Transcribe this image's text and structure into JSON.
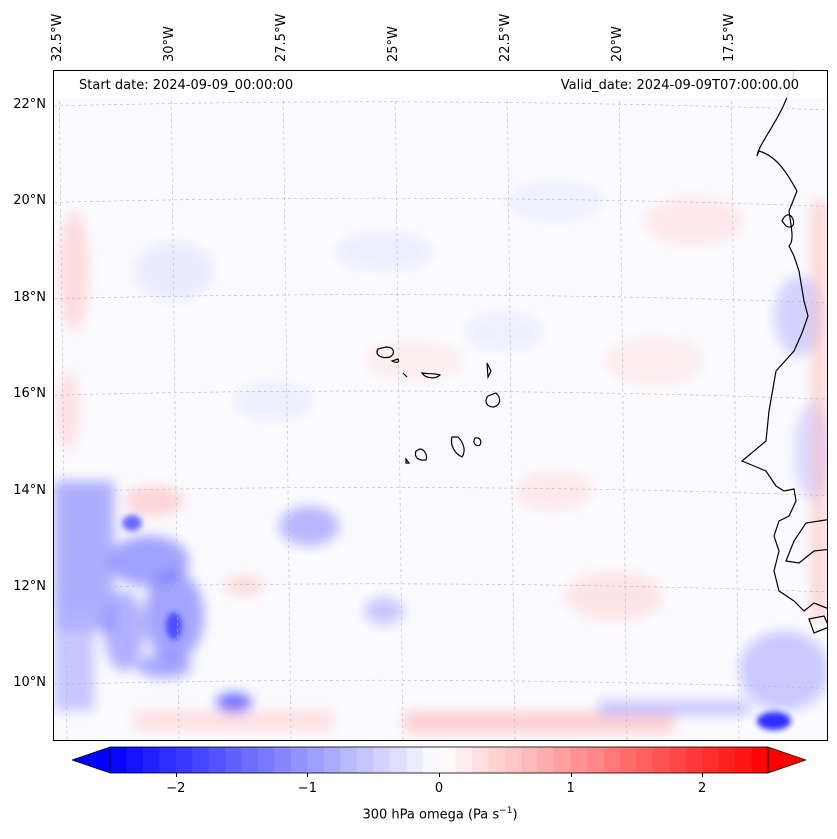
{
  "map": {
    "lon_ticks": [
      {
        "label": "32.5°W",
        "value": -32.5
      },
      {
        "label": "30°W",
        "value": -30
      },
      {
        "label": "27.5°W",
        "value": -27.5
      },
      {
        "label": "25°W",
        "value": -25
      },
      {
        "label": "22.5°W",
        "value": -22.5
      },
      {
        "label": "20°W",
        "value": -20
      },
      {
        "label": "17.5°W",
        "value": -17.5
      }
    ],
    "lat_ticks": [
      {
        "label": "22°N",
        "value": 22
      },
      {
        "label": "20°N",
        "value": 20
      },
      {
        "label": "18°N",
        "value": 18
      },
      {
        "label": "16°N",
        "value": 16
      },
      {
        "label": "14°N",
        "value": 14
      },
      {
        "label": "12°N",
        "value": 12
      },
      {
        "label": "10°N",
        "value": 10
      }
    ],
    "start_date": "Start date: 2024-09-09_00:00:00",
    "valid_date": "Valid_date: 2024-09-09T07:00:00.00"
  },
  "colorbar": {
    "ticks": [
      {
        "label": "−2",
        "value": -2
      },
      {
        "label": "−1",
        "value": -1
      },
      {
        "label": "0",
        "value": 0
      },
      {
        "label": "1",
        "value": 1
      },
      {
        "label": "2",
        "value": 2
      }
    ],
    "range": [
      -2.5,
      2.5
    ],
    "title": "300 hPa omega (Pa s",
    "title_sup": "−1",
    "title_end": ")",
    "colors": {
      "min": "#0000ff",
      "mid": "#ffffff",
      "max": "#ff0000"
    }
  }
}
